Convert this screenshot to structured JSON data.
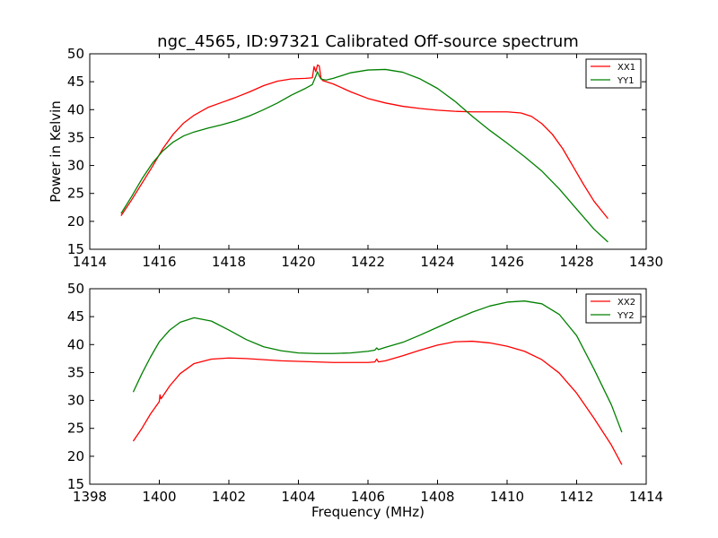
{
  "figure": {
    "title": "ngc_4565, ID:97321 Calibrated Off-source spectrum"
  },
  "colors": {
    "red": "#ff0000",
    "green": "#008000"
  },
  "chart_data": [
    {
      "type": "line",
      "title": "ngc_4565, ID:97321 Calibrated Off-source spectrum",
      "xlabel": "",
      "ylabel": "Power in Kelvin",
      "xlim": [
        1414,
        1430
      ],
      "ylim": [
        15,
        50
      ],
      "xticks": [
        1414,
        1416,
        1418,
        1420,
        1422,
        1424,
        1426,
        1428,
        1430
      ],
      "yticks": [
        15,
        20,
        25,
        30,
        35,
        40,
        45,
        50
      ],
      "grid": false,
      "legend": "top-right",
      "series": [
        {
          "name": "XX1",
          "color": "#ff0000",
          "x": [
            1414.9,
            1415.2,
            1415.5,
            1415.8,
            1416.1,
            1416.4,
            1416.7,
            1417.0,
            1417.4,
            1417.8,
            1418.2,
            1418.6,
            1419.0,
            1419.4,
            1419.8,
            1420.2,
            1420.4,
            1420.45,
            1420.5,
            1420.55,
            1420.6,
            1420.65,
            1420.7,
            1420.8,
            1421.0,
            1421.5,
            1422.0,
            1422.5,
            1423.0,
            1423.5,
            1424.0,
            1424.5,
            1425.0,
            1425.5,
            1426.0,
            1426.4,
            1426.7,
            1427.0,
            1427.3,
            1427.6,
            1427.9,
            1428.2,
            1428.5,
            1428.9
          ],
          "y": [
            21.0,
            23.8,
            26.8,
            29.8,
            33.0,
            35.6,
            37.6,
            39.0,
            40.4,
            41.3,
            42.2,
            43.2,
            44.3,
            45.1,
            45.5,
            45.6,
            45.7,
            47.7,
            46.8,
            48.0,
            47.8,
            45.6,
            45.2,
            45.0,
            44.6,
            43.2,
            42.0,
            41.2,
            40.6,
            40.2,
            39.9,
            39.7,
            39.6,
            39.6,
            39.6,
            39.4,
            38.8,
            37.5,
            35.6,
            33.0,
            29.8,
            26.6,
            23.6,
            20.5
          ]
        },
        {
          "name": "YY1",
          "color": "#008000",
          "x": [
            1414.9,
            1415.2,
            1415.5,
            1415.8,
            1416.1,
            1416.4,
            1416.7,
            1417.0,
            1417.4,
            1417.8,
            1418.2,
            1418.6,
            1419.0,
            1419.4,
            1419.8,
            1420.2,
            1420.4,
            1420.5,
            1420.55,
            1420.6,
            1420.65,
            1420.7,
            1420.8,
            1421.0,
            1421.5,
            1422.0,
            1422.5,
            1423.0,
            1423.5,
            1424.0,
            1424.5,
            1425.0,
            1425.5,
            1426.0,
            1426.5,
            1427.0,
            1427.5,
            1428.0,
            1428.5,
            1428.9
          ],
          "y": [
            21.4,
            24.4,
            27.6,
            30.4,
            32.6,
            34.2,
            35.3,
            36.0,
            36.7,
            37.3,
            38.0,
            38.9,
            40.0,
            41.2,
            42.6,
            43.8,
            44.5,
            46.0,
            46.8,
            46.0,
            45.5,
            45.4,
            45.3,
            45.6,
            46.6,
            47.1,
            47.2,
            46.7,
            45.5,
            43.8,
            41.5,
            38.8,
            36.3,
            34.0,
            31.6,
            29.0,
            25.8,
            22.2,
            18.6,
            16.3
          ]
        }
      ]
    },
    {
      "type": "line",
      "title": "",
      "xlabel": "Frequency (MHz)",
      "ylabel": "",
      "xlim": [
        1398,
        1414
      ],
      "ylim": [
        15,
        50
      ],
      "xticks": [
        1398,
        1400,
        1402,
        1404,
        1406,
        1408,
        1410,
        1412,
        1414
      ],
      "yticks": [
        15,
        20,
        25,
        30,
        35,
        40,
        45,
        50
      ],
      "grid": false,
      "legend": "top-right",
      "series": [
        {
          "name": "XX2",
          "color": "#ff0000",
          "x": [
            1399.25,
            1399.5,
            1399.75,
            1400.0,
            1400.02,
            1400.05,
            1400.3,
            1400.6,
            1401.0,
            1401.5,
            1402.0,
            1402.5,
            1403.0,
            1403.5,
            1404.0,
            1404.5,
            1405.0,
            1405.5,
            1406.0,
            1406.2,
            1406.25,
            1406.3,
            1406.5,
            1407.0,
            1407.5,
            1408.0,
            1408.5,
            1409.0,
            1409.5,
            1410.0,
            1410.5,
            1411.0,
            1411.5,
            1412.0,
            1412.5,
            1413.0,
            1413.3
          ],
          "y": [
            22.7,
            25.0,
            27.6,
            29.8,
            31.0,
            30.3,
            32.6,
            34.8,
            36.6,
            37.4,
            37.6,
            37.5,
            37.3,
            37.1,
            37.0,
            36.9,
            36.8,
            36.8,
            36.8,
            36.9,
            37.4,
            36.9,
            37.1,
            38.0,
            39.0,
            39.9,
            40.5,
            40.6,
            40.3,
            39.7,
            38.8,
            37.3,
            34.9,
            31.3,
            26.8,
            22.0,
            18.5
          ]
        },
        {
          "name": "YY2",
          "color": "#008000",
          "x": [
            1399.25,
            1399.5,
            1399.75,
            1400.0,
            1400.3,
            1400.6,
            1401.0,
            1401.5,
            1402.0,
            1402.5,
            1403.0,
            1403.5,
            1404.0,
            1404.5,
            1405.0,
            1405.5,
            1406.0,
            1406.2,
            1406.25,
            1406.3,
            1406.5,
            1407.0,
            1407.5,
            1408.0,
            1408.5,
            1409.0,
            1409.5,
            1410.0,
            1410.5,
            1411.0,
            1411.5,
            1412.0,
            1412.5,
            1413.0,
            1413.3
          ],
          "y": [
            31.5,
            34.8,
            37.8,
            40.5,
            42.6,
            44.0,
            44.8,
            44.2,
            42.6,
            40.9,
            39.6,
            38.9,
            38.5,
            38.4,
            38.4,
            38.5,
            38.8,
            39.0,
            39.4,
            39.1,
            39.5,
            40.4,
            41.7,
            43.1,
            44.5,
            45.8,
            46.9,
            47.6,
            47.8,
            47.3,
            45.4,
            41.6,
            35.6,
            29.2,
            24.3
          ]
        }
      ]
    }
  ]
}
